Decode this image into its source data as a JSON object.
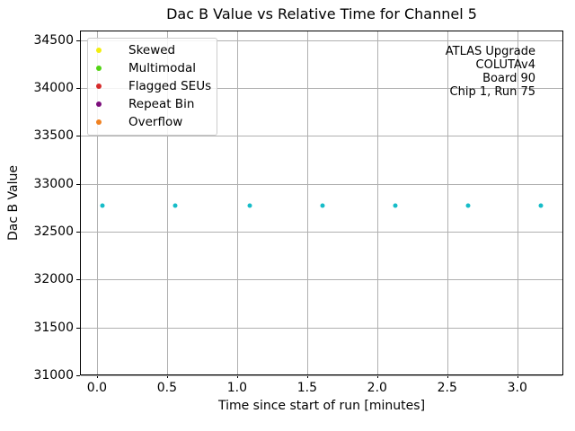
{
  "figure": {
    "background": "#ffffff"
  },
  "chart_data": {
    "type": "scatter",
    "title": "Dac B Value vs Relative Time for Channel 5",
    "xlabel": "Time since start of run [minutes]",
    "ylabel": "Dac B Value",
    "xlim": [
      -0.115,
      3.335
    ],
    "ylim": [
      30990,
      34590
    ],
    "grid": true,
    "grid_color": "#b0b0b0",
    "xtick_values": [
      0.0,
      0.5,
      1.0,
      1.5,
      2.0,
      2.5,
      3.0
    ],
    "xtick_labels": [
      "0.0",
      "0.5",
      "1.0",
      "1.5",
      "2.0",
      "2.5",
      "3.0"
    ],
    "ytick_values": [
      31000,
      31500,
      32000,
      32500,
      33000,
      33500,
      34000,
      34500
    ],
    "ytick_labels": [
      "31000",
      "31500",
      "32000",
      "32500",
      "33000",
      "33500",
      "34000",
      "34500"
    ],
    "series": [
      {
        "name": "dac-b-readings",
        "marker_color": "#16bcc8",
        "x": [
          0.04,
          0.56,
          1.09,
          1.61,
          2.13,
          2.65,
          3.17
        ],
        "y": [
          32768,
          32768,
          32768,
          32768,
          32768,
          32768,
          32768
        ]
      }
    ],
    "legend": {
      "position": "upper left",
      "entries": [
        {
          "label": "Skewed",
          "color": "#f2ee0e"
        },
        {
          "label": "Multimodal",
          "color": "#52d413"
        },
        {
          "label": "Flagged SEUs",
          "color": "#d62b2b"
        },
        {
          "label": "Repeat Bin",
          "color": "#7c0e7c"
        },
        {
          "label": "Overflow",
          "color": "#f08222"
        }
      ]
    },
    "annotation": {
      "align": "right",
      "lines": [
        "ATLAS Upgrade",
        "COLUTAv4",
        "Board 90",
        "Chip 1, Run 75"
      ]
    }
  }
}
